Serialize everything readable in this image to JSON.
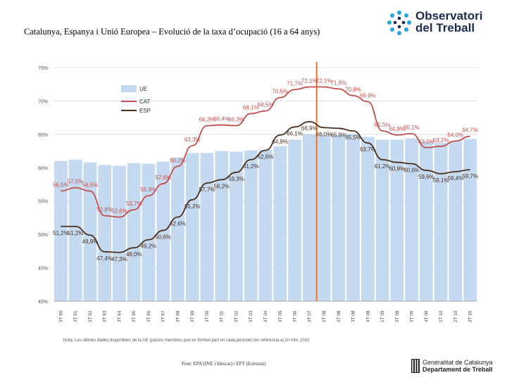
{
  "title": "Catalunya, Espanya i Unió Europea – Evolució de la taxa d’ocupació (16 a 64 anys)",
  "logo": {
    "line1": "Observatori",
    "line2": "del Treball",
    "icon": "dots-circle-logo-icon"
  },
  "note": "Nota: Les últimes dades disponibles de la UE (països membres que en formen part en cada període) fan referència al 2n trim. 2010",
  "source": "Font: EPA (INE i Idescat) i EFT (Eurostat)",
  "gencat": {
    "line1": "Generalitat de Catalunya",
    "line2": "Departament de Treball",
    "icon": "senyera-icon"
  },
  "colors": {
    "ue_bar": "#c5d9f1",
    "cat_line": "#c0504d",
    "esp_line": "#4a3020",
    "vline": "#f07020",
    "grid": "#cccccc"
  },
  "chart_data": {
    "type": "bar",
    "categories": [
      "3T 90",
      "3T 91",
      "3T 92",
      "3T 93",
      "3T 94",
      "3T 95",
      "3T 96",
      "3T 97",
      "3T 98",
      "3T 99",
      "3T 00",
      "3T 01",
      "3T 02",
      "3T 03",
      "3T 04",
      "3T 05",
      "3T 06",
      "3T 07",
      "1T 08",
      "2T 08",
      "3T 08",
      "4T 08",
      "1T 09",
      "2T 09",
      "3T 09",
      "4T 09",
      "1T 10",
      "2T 10",
      "3T 10"
    ],
    "ylim": [
      40,
      75
    ],
    "yticks": [
      40,
      45,
      50,
      55,
      60,
      65,
      70,
      75
    ],
    "ytick_labels": [
      "40%",
      "45%",
      "50%",
      "55%",
      "60%",
      "65%",
      "70%",
      "75%"
    ],
    "legend": {
      "placement": "top-left",
      "entries": [
        "UE",
        "CAT",
        "ESP"
      ]
    },
    "vertical_marker_category": "3T 07",
    "series": [
      {
        "name": "UE",
        "type": "bar",
        "values": [
          61.0,
          61.2,
          60.8,
          60.4,
          60.3,
          60.7,
          60.6,
          60.9,
          61.5,
          62.2,
          62.2,
          62.5,
          62.4,
          62.6,
          62.7,
          63.2,
          64.2,
          65.0,
          64.9,
          64.9,
          65.1,
          64.6,
          64.2,
          64.2,
          64.4,
          63.9,
          63.7,
          64.0,
          64.3
        ]
      },
      {
        "name": "CAT",
        "type": "line",
        "values": [
          56.5,
          57.0,
          56.5,
          52.8,
          52.6,
          53.7,
          55.8,
          57.6,
          60.2,
          63.3,
          66.3,
          66.4,
          66.3,
          68.1,
          68.5,
          70.5,
          71.7,
          72.1,
          72.1,
          71.8,
          70.8,
          69.9,
          65.5,
          64.9,
          65.1,
          63.0,
          63.2,
          64.0,
          64.7
        ],
        "labels": [
          "56,5%",
          "57,0%",
          "56,5%",
          "52,8%",
          "52,6%",
          "53,7%",
          "55,8%",
          "57,6%",
          "60,2%",
          "63,3%",
          "66,3%",
          "66,4%",
          "66,3%",
          "68,1%",
          "68,5%",
          "70,5%",
          "71,7%",
          "72,1%",
          "72,1%",
          "71,8%",
          "70,8%",
          "69,9%",
          "65,5%",
          "64,9%",
          "65,1%",
          "63,0%",
          "63,2%",
          "64,0%",
          "64,7%"
        ]
      },
      {
        "name": "ESP",
        "type": "line",
        "values": [
          51.2,
          51.2,
          49.9,
          47.4,
          47.3,
          48.0,
          49.2,
          50.6,
          52.6,
          55.2,
          57.7,
          58.2,
          59.3,
          61.2,
          62.6,
          64.9,
          66.1,
          66.9,
          66.0,
          65.9,
          65.5,
          63.7,
          61.2,
          60.8,
          60.6,
          59.6,
          59.1,
          59.4,
          59.7
        ],
        "labels": [
          "51,2%",
          "51,2%",
          "49,9%",
          "47,4%",
          "47,3%",
          "48,0%",
          "49,2%",
          "50,6%",
          "52,6%",
          "55,2%",
          "57,7%",
          "58,2%",
          "59,3%",
          "61,2%",
          "62,6%",
          "64,9%",
          "66,1%",
          "66,9%",
          "66,0%",
          "65,9%",
          "65,5%",
          "63,7%",
          "61,2%",
          "60,8%",
          "60,6%",
          "59,6%",
          "59,1%",
          "59,4%",
          "59,7%"
        ]
      }
    ]
  }
}
